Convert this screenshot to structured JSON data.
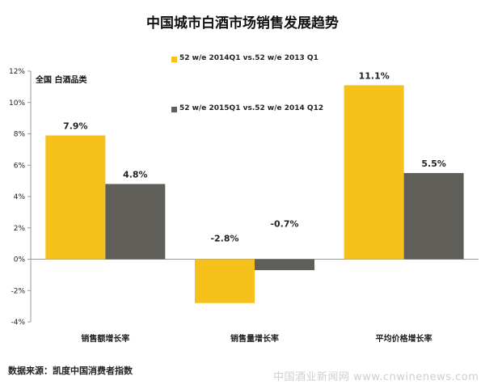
{
  "chart_data": {
    "type": "bar",
    "title": "中国城市白酒市场销售发展趋势",
    "subtitle": "全国  白酒品类",
    "categories": [
      "销售额增长率",
      "销售量增长率",
      "平均价格增长率"
    ],
    "series": [
      {
        "name": "52 w/e 2014Q1 vs.52 w/e 2013 Q1",
        "values": [
          7.9,
          -2.8,
          11.1
        ],
        "labels": [
          "7.9%",
          "-2.8%",
          "11.1%"
        ],
        "color": "#f5c11a"
      },
      {
        "name": "52 w/e 2015Q1 vs.52 w/e 2014 Q12",
        "values": [
          4.8,
          -0.7,
          5.5
        ],
        "labels": [
          "4.8%",
          "-0.7%",
          "5.5%"
        ],
        "color": "#5f5e58"
      }
    ],
    "ylim": [
      -4,
      12
    ],
    "yticks": [
      -4,
      -2,
      0,
      2,
      4,
      6,
      8,
      10,
      12
    ],
    "ytick_labels": [
      "-4%",
      "-2%",
      "0%",
      "2%",
      "4%",
      "6%",
      "8%",
      "10%",
      "12%"
    ],
    "xlabel": "",
    "ylabel": "",
    "grid": false,
    "legend_position": "top-center"
  },
  "source_note": "数据来源：凯度中国消费者指数",
  "watermark": "中国酒业新闻网 www.cnwinenews.com"
}
